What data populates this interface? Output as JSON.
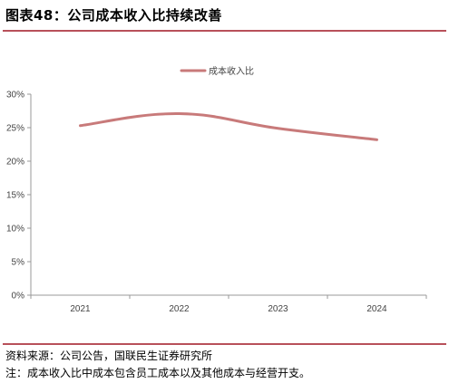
{
  "header": {
    "title": "图表48：公司成本收入比持续改善"
  },
  "footer": {
    "source": "资料来源：公司公告，国联民生证券研究所",
    "note": "注：成本收入比中成本包含员工成本以及其他成本与经营开支。"
  },
  "colors": {
    "accent": "#b8505a",
    "series": "#c87a7a",
    "axis": "#999999"
  },
  "chart_data": {
    "type": "line",
    "categories": [
      "2021",
      "2022",
      "2023",
      "2024"
    ],
    "series": [
      {
        "name": "成本收入比",
        "values": [
          25.3,
          27.1,
          24.9,
          23.2
        ]
      }
    ],
    "ylim": [
      0,
      30
    ],
    "yticks": [
      "0%",
      "5%",
      "10%",
      "15%",
      "20%",
      "25%",
      "30%"
    ],
    "legend": "top-center",
    "grid": false,
    "smooth": true
  }
}
